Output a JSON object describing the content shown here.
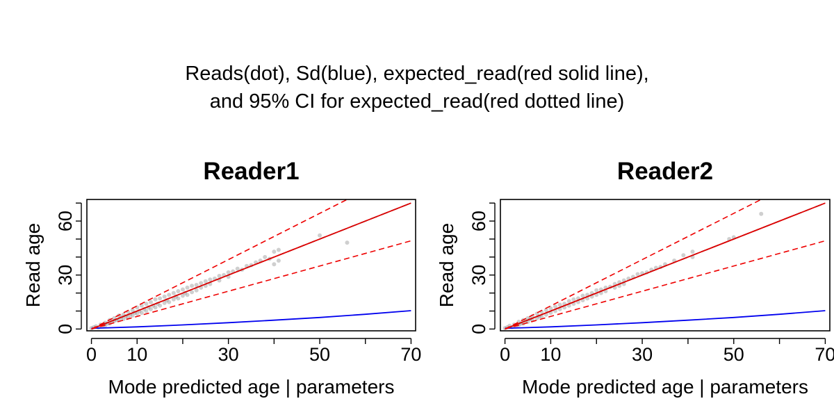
{
  "page": {
    "title_line1": "Reads(dot), Sd(blue), expected_read(red solid line),",
    "title_line2": "and 95% CI for expected_read(red dotted line)"
  },
  "colors": {
    "points": "#808080",
    "sd_line": "#0000ee",
    "expected_line": "#dd0000",
    "ci_line": "#ee0000",
    "identity_line": "#000000"
  },
  "chart_data": [
    {
      "type": "scatter",
      "title": "Reader1",
      "xlabel": "Mode predicted age | parameters",
      "ylabel": "Read age",
      "xlim": [
        -1,
        71
      ],
      "ylim": [
        -1,
        72
      ],
      "xticks": [
        0,
        10,
        20,
        30,
        40,
        50,
        60,
        70
      ],
      "xtick_labels": [
        "0",
        "10",
        "",
        "30",
        "",
        "50",
        "",
        "70"
      ],
      "yticks": [
        0,
        10,
        20,
        30,
        40,
        50,
        60,
        70
      ],
      "ytick_labels": [
        "0",
        "",
        "",
        "30",
        "",
        "",
        "60",
        ""
      ],
      "grid": false,
      "series": [
        {
          "name": "Reads",
          "kind": "points",
          "points": [
            [
              0,
              0.5
            ],
            [
              0.5,
              1
            ],
            [
              1,
              1.5
            ],
            [
              1.5,
              0.8
            ],
            [
              2,
              2.5
            ],
            [
              2.5,
              2
            ],
            [
              3,
              3.5
            ],
            [
              3,
              2
            ],
            [
              3.5,
              3
            ],
            [
              4,
              5
            ],
            [
              4,
              3
            ],
            [
              4.5,
              4
            ],
            [
              5,
              6
            ],
            [
              5,
              4.5
            ],
            [
              5.5,
              5
            ],
            [
              6,
              7.5
            ],
            [
              6,
              5
            ],
            [
              6.5,
              6.5
            ],
            [
              7,
              8
            ],
            [
              7,
              5.5
            ],
            [
              7.5,
              7
            ],
            [
              8,
              9.5
            ],
            [
              8,
              6.5
            ],
            [
              8.5,
              8
            ],
            [
              9,
              10.5
            ],
            [
              9,
              7.5
            ],
            [
              9.5,
              9
            ],
            [
              10,
              12
            ],
            [
              10,
              8.5
            ],
            [
              10.5,
              10
            ],
            [
              11,
              13
            ],
            [
              11,
              9
            ],
            [
              11.5,
              11
            ],
            [
              12,
              14
            ],
            [
              12,
              10
            ],
            [
              12.5,
              12
            ],
            [
              13,
              15
            ],
            [
              13,
              11
            ],
            [
              13.5,
              13
            ],
            [
              14,
              16.5
            ],
            [
              14,
              12
            ],
            [
              14.5,
              14
            ],
            [
              15,
              17
            ],
            [
              15,
              13
            ],
            [
              16,
              18
            ],
            [
              16,
              14.5
            ],
            [
              16.5,
              16
            ],
            [
              17,
              19
            ],
            [
              17,
              15
            ],
            [
              18,
              20
            ],
            [
              18,
              16.5
            ],
            [
              18.5,
              18
            ],
            [
              19,
              21
            ],
            [
              19,
              17
            ],
            [
              20,
              22
            ],
            [
              20,
              18.5
            ],
            [
              20.5,
              20
            ],
            [
              21,
              23
            ],
            [
              21,
              19
            ],
            [
              22,
              24
            ],
            [
              22,
              20.5
            ],
            [
              23,
              24.5
            ],
            [
              23,
              21.5
            ],
            [
              24,
              25.5
            ],
            [
              24,
              23
            ],
            [
              25,
              26.5
            ],
            [
              25,
              24
            ],
            [
              26,
              27.5
            ],
            [
              26,
              25
            ],
            [
              27,
              28
            ],
            [
              28,
              29.5
            ],
            [
              28,
              27
            ],
            [
              29,
              30
            ],
            [
              30,
              31.5
            ],
            [
              30,
              29
            ],
            [
              31,
              32
            ],
            [
              32,
              33.5
            ],
            [
              33,
              33
            ],
            [
              34,
              35
            ],
            [
              35,
              35.5
            ],
            [
              36,
              37
            ],
            [
              37,
              38
            ],
            [
              38,
              40
            ],
            [
              39,
              39
            ],
            [
              40,
              43
            ],
            [
              40,
              36
            ],
            [
              41,
              44
            ],
            [
              41,
              38
            ],
            [
              50,
              52
            ],
            [
              56,
              48
            ]
          ]
        },
        {
          "name": "Sd",
          "kind": "line",
          "x": [
            0,
            10,
            20,
            30,
            40,
            50,
            60,
            70
          ],
          "y": [
            0.4,
            1.2,
            2.3,
            3.5,
            4.9,
            6.4,
            8.2,
            10.2
          ]
        },
        {
          "name": "expected_read",
          "kind": "line",
          "x": [
            0,
            70
          ],
          "y": [
            0,
            70
          ]
        },
        {
          "name": "95% CI upper",
          "kind": "dashed",
          "x": [
            0,
            56
          ],
          "y": [
            0,
            72
          ]
        },
        {
          "name": "95% CI lower",
          "kind": "dashed",
          "x": [
            0,
            70
          ],
          "y": [
            0,
            49
          ]
        }
      ]
    },
    {
      "type": "scatter",
      "title": "Reader2",
      "xlabel": "Mode predicted age | parameters",
      "ylabel": "Read age",
      "xlim": [
        -1,
        71
      ],
      "ylim": [
        -1,
        72
      ],
      "xticks": [
        0,
        10,
        20,
        30,
        40,
        50,
        60,
        70
      ],
      "xtick_labels": [
        "0",
        "10",
        "",
        "30",
        "",
        "50",
        "",
        "70"
      ],
      "yticks": [
        0,
        10,
        20,
        30,
        40,
        50,
        60,
        70
      ],
      "ytick_labels": [
        "0",
        "",
        "",
        "30",
        "",
        "",
        "60",
        ""
      ],
      "grid": false,
      "series": [
        {
          "name": "Reads",
          "kind": "points",
          "points": [
            [
              0,
              0.5
            ],
            [
              0.5,
              1
            ],
            [
              1,
              1.8
            ],
            [
              1.5,
              1
            ],
            [
              2,
              2.5
            ],
            [
              2.5,
              1.8
            ],
            [
              3,
              4
            ],
            [
              3,
              2.2
            ],
            [
              3.5,
              3
            ],
            [
              4,
              5
            ],
            [
              4,
              3
            ],
            [
              4.5,
              4.5
            ],
            [
              5,
              6
            ],
            [
              5,
              4
            ],
            [
              5.5,
              5.5
            ],
            [
              6,
              7
            ],
            [
              6,
              5
            ],
            [
              7,
              8.5
            ],
            [
              7,
              6
            ],
            [
              7.5,
              7
            ],
            [
              8,
              9.5
            ],
            [
              8,
              7
            ],
            [
              9,
              10.5
            ],
            [
              9,
              8
            ],
            [
              10,
              11.5
            ],
            [
              10,
              9
            ],
            [
              11,
              12.5
            ],
            [
              11,
              10
            ],
            [
              12,
              13.5
            ],
            [
              12,
              11
            ],
            [
              13,
              14
            ],
            [
              13,
              12
            ],
            [
              14,
              15.5
            ],
            [
              14,
              13
            ],
            [
              15,
              16.5
            ],
            [
              15,
              14
            ],
            [
              16,
              17
            ],
            [
              16,
              15
            ],
            [
              17,
              18.5
            ],
            [
              17,
              16
            ],
            [
              18,
              19
            ],
            [
              18,
              17
            ],
            [
              19,
              20
            ],
            [
              19,
              18
            ],
            [
              20,
              21.5
            ],
            [
              20,
              19
            ],
            [
              21,
              22
            ],
            [
              21,
              20
            ],
            [
              22,
              23
            ],
            [
              22,
              21
            ],
            [
              23,
              23.5
            ],
            [
              24,
              25
            ],
            [
              24,
              23
            ],
            [
              25,
              26
            ],
            [
              25,
              24
            ],
            [
              26,
              27
            ],
            [
              26,
              25
            ],
            [
              27,
              28
            ],
            [
              28,
              29
            ],
            [
              29,
              30.5
            ],
            [
              30,
              31
            ],
            [
              31,
              31.5
            ],
            [
              32,
              33
            ],
            [
              33,
              34
            ],
            [
              34,
              34.5
            ],
            [
              35,
              36
            ],
            [
              37,
              38
            ],
            [
              39,
              41
            ],
            [
              41,
              43
            ],
            [
              41,
              40
            ],
            [
              49,
              50
            ],
            [
              50,
              51
            ],
            [
              56,
              64
            ]
          ]
        },
        {
          "name": "Sd",
          "kind": "line",
          "x": [
            0,
            10,
            20,
            30,
            40,
            50,
            60,
            70
          ],
          "y": [
            0.4,
            1.2,
            2.3,
            3.5,
            4.9,
            6.4,
            8.2,
            10.2
          ]
        },
        {
          "name": "expected_read",
          "kind": "line",
          "x": [
            0,
            70
          ],
          "y": [
            0,
            70
          ]
        },
        {
          "name": "95% CI upper",
          "kind": "dashed",
          "x": [
            0,
            56
          ],
          "y": [
            0,
            72
          ]
        },
        {
          "name": "95% CI lower",
          "kind": "dashed",
          "x": [
            0,
            70
          ],
          "y": [
            0,
            49
          ]
        }
      ]
    }
  ]
}
